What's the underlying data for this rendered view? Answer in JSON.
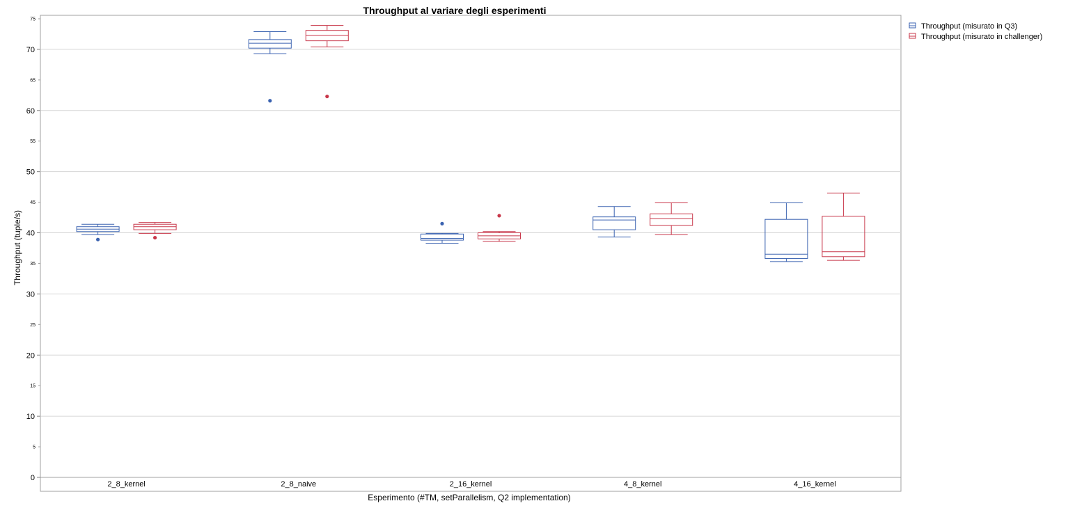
{
  "chart_data": {
    "type": "box",
    "title": "Throughput al variare degli esperimenti",
    "xlabel": "Esperimento (#TM, setParallelism, Q2 implementation)",
    "ylabel": "Throughput (tuple/s)",
    "ylim": [
      0,
      75
    ],
    "y_ticks_major": [
      0,
      10,
      20,
      30,
      40,
      50,
      60,
      70
    ],
    "y_ticks_minor": [
      5,
      15,
      25,
      35,
      45,
      55,
      65,
      75
    ],
    "grid": "horizontal at major ticks",
    "legend_position": "top-right, outside plot",
    "categories": [
      "2_8_kernel",
      "2_8_naive",
      "2_16_kernel",
      "4_8_kernel",
      "4_16_kernel"
    ],
    "series": [
      {
        "name": "Throughput (misurato in Q3)",
        "color": "#3a62b0",
        "boxes": [
          {
            "min": 39.7,
            "q1": 40.2,
            "median": 40.6,
            "q3": 41.0,
            "max": 41.4,
            "outliers": [
              38.9
            ]
          },
          {
            "min": 69.3,
            "q1": 70.2,
            "median": 71.0,
            "q3": 71.6,
            "max": 72.9,
            "outliers": [
              61.6
            ]
          },
          {
            "min": 38.3,
            "q1": 38.8,
            "median": 39.1,
            "q3": 39.8,
            "max": 39.9,
            "outliers": [
              41.5
            ]
          },
          {
            "min": 39.3,
            "q1": 40.5,
            "median": 42.1,
            "q3": 42.6,
            "max": 44.3,
            "outliers": []
          },
          {
            "min": 35.3,
            "q1": 35.8,
            "median": 36.5,
            "q3": 42.2,
            "max": 44.9,
            "outliers": []
          }
        ]
      },
      {
        "name": "Throughput (misurato in challenger)",
        "color": "#c8374a",
        "boxes": [
          {
            "min": 39.9,
            "q1": 40.5,
            "median": 41.0,
            "q3": 41.4,
            "max": 41.7,
            "outliers": [
              39.2
            ]
          },
          {
            "min": 70.4,
            "q1": 71.4,
            "median": 72.3,
            "q3": 73.1,
            "max": 73.9,
            "outliers": [
              62.3
            ]
          },
          {
            "min": 38.6,
            "q1": 39.0,
            "median": 39.5,
            "q3": 40.0,
            "max": 40.2,
            "outliers": [
              42.8
            ]
          },
          {
            "min": 39.7,
            "q1": 41.2,
            "median": 42.3,
            "q3": 43.1,
            "max": 44.9,
            "outliers": []
          },
          {
            "min": 35.5,
            "q1": 36.1,
            "median": 36.9,
            "q3": 42.7,
            "max": 46.5,
            "outliers": []
          }
        ]
      }
    ]
  }
}
